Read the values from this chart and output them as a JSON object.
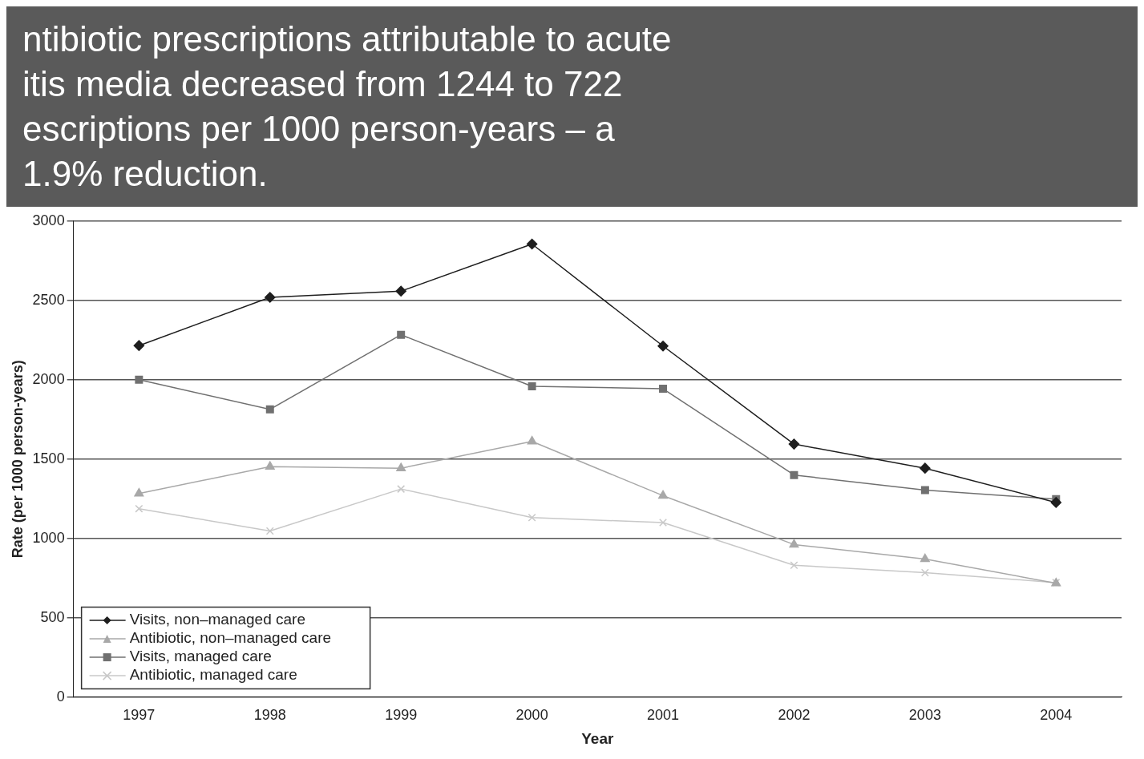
{
  "chart_data": {
    "type": "line",
    "xlabel": "Year",
    "ylabel": "Rate (per 1000 person-years)",
    "categories": [
      "1997",
      "1998",
      "1999",
      "2000",
      "2001",
      "2002",
      "2003",
      "2004"
    ],
    "series": [
      {
        "name": "Visits, non–managed care",
        "color": "#1e1e1e",
        "marker": "diamond",
        "values": [
          2215,
          2519,
          2558,
          2855,
          2212,
          1594,
          1442,
          1226
        ]
      },
      {
        "name": "Antibiotic, non–managed care",
        "color": "#a8a8a8",
        "marker": "triangle",
        "values": [
          1283,
          1452,
          1442,
          1611,
          1269,
          961,
          869,
          717
        ]
      },
      {
        "name": "Visits, managed care",
        "color": "#707070",
        "marker": "square",
        "values": [
          2000,
          1813,
          2283,
          1958,
          1943,
          1399,
          1304,
          1247
        ]
      },
      {
        "name": "Antibiotic, managed care",
        "color": "#c8c8c8",
        "marker": "cross",
        "values": [
          1187,
          1046,
          1311,
          1131,
          1099,
          830,
          784,
          721
        ]
      }
    ],
    "ylim": [
      0,
      3000
    ],
    "yticks": [
      0,
      500,
      1000,
      1500,
      2000,
      2500,
      3000
    ],
    "grid": "y",
    "legend": "bottom left",
    "line_style": "solid",
    "annotations": [
      "ntibiotic prescriptions attributable to acute\nitis media decreased from 1244 to 722\nescriptions per 1000 person-years – a\n1.9% reduction."
    ]
  }
}
